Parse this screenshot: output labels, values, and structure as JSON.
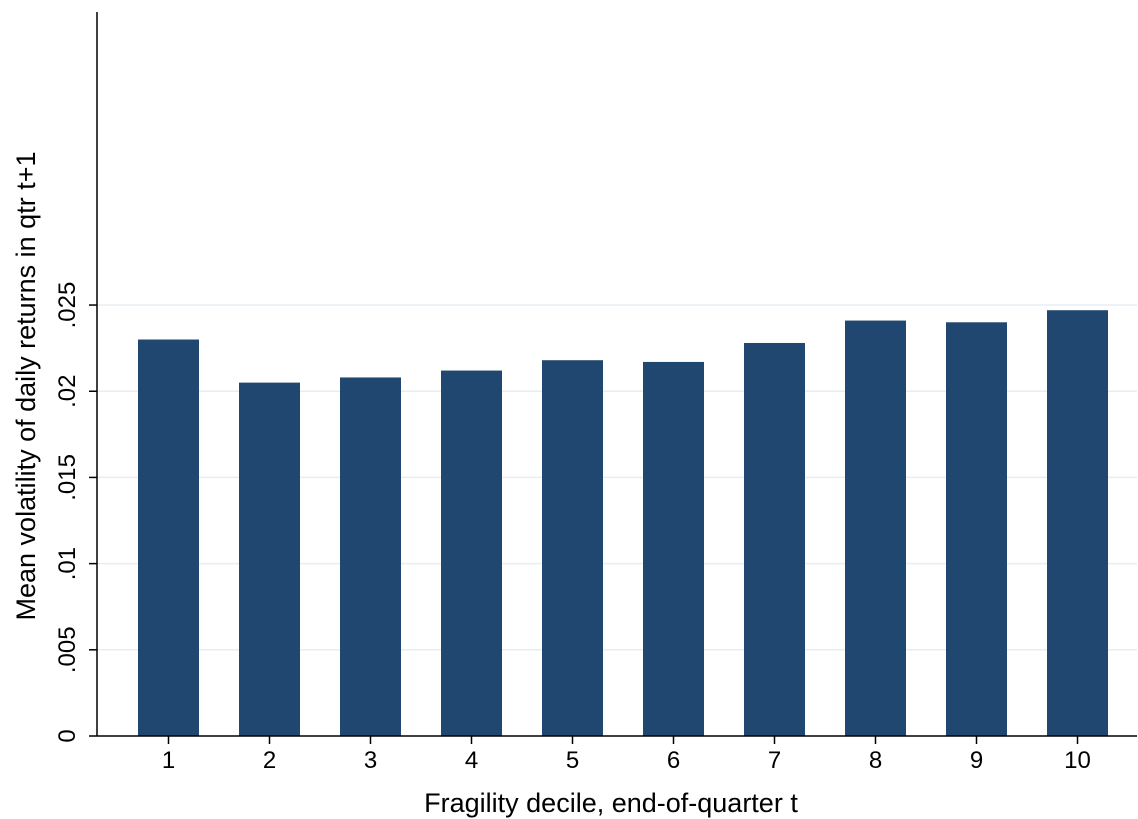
{
  "chart_data": {
    "type": "bar",
    "title": "",
    "xlabel": "Fragility decile, end-of-quarter t",
    "ylabel": "Mean volatility of daily returns in qtr t+1",
    "categories": [
      "1",
      "2",
      "3",
      "4",
      "5",
      "6",
      "7",
      "8",
      "9",
      "10"
    ],
    "values": [
      0.023,
      0.0205,
      0.0208,
      0.0212,
      0.0218,
      0.0217,
      0.0228,
      0.0241,
      0.024,
      0.0247
    ],
    "ylim": [
      0,
      0.042
    ],
    "yticks": [
      0,
      0.005,
      0.01,
      0.015,
      0.02,
      0.025
    ],
    "ytick_labels": [
      "0",
      ".005",
      ".01",
      ".015",
      ".02",
      ".025"
    ],
    "grid": true,
    "legend": "none",
    "colors": {
      "bar": "#1f476f",
      "grid": "#e6eef3",
      "axis": "#000000"
    }
  }
}
